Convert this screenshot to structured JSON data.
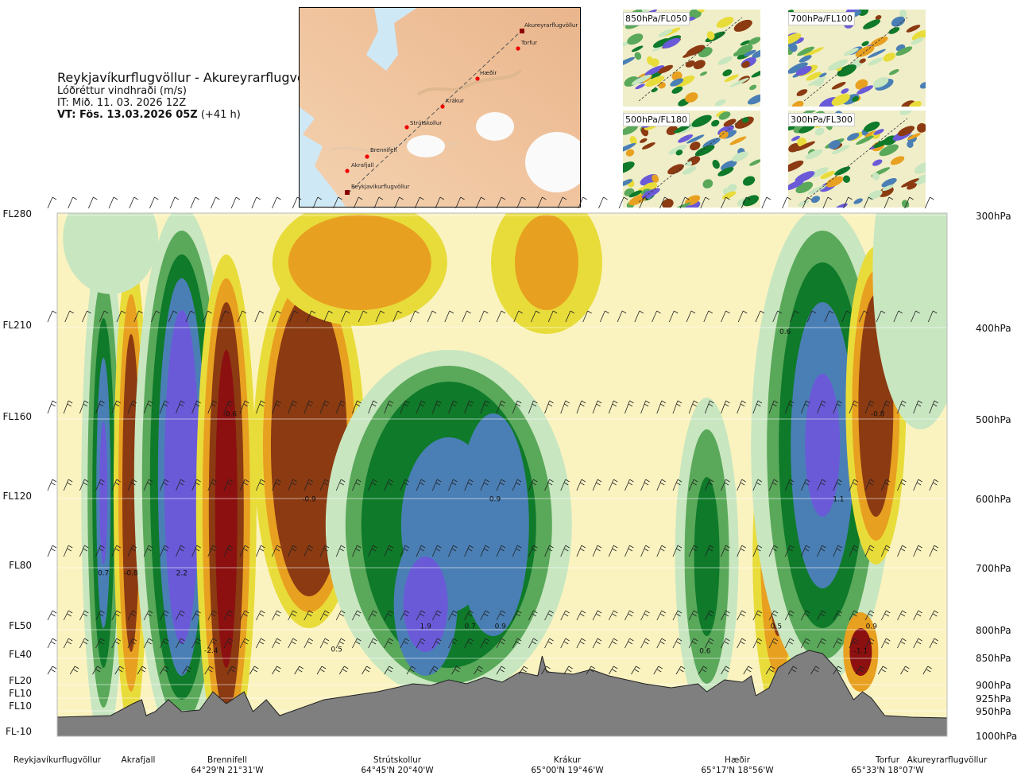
{
  "title": {
    "route": "Reykjavíkurflugvöllur - Akureyrarflugvöllur",
    "variable": "Lóðréttur vindhraði (m/s)",
    "init_time": "IT: Mið. 11. 03. 2026 12Z",
    "valid_time": "VT: Fös. 13.03.2026 05Z",
    "lead": "(+41 h)"
  },
  "map": {
    "waypoints": [
      "Akureyrarflugvöllur",
      "Torfur",
      "Hæðir",
      "Krákur",
      "Strútskollur",
      "Brennifell",
      "Akrafjall",
      "Reykjavíkurflugvöllur"
    ]
  },
  "thumbnails": [
    {
      "label": "850hPa/FL050"
    },
    {
      "label": "700hPa/FL100"
    },
    {
      "label": "500hPa/FL180"
    },
    {
      "label": "300hPa/FL300"
    }
  ],
  "chart_data": {
    "type": "heatmap",
    "title": "Lóðréttur vindhraði (m/s)",
    "x_axis_stations": [
      {
        "name": "Reykjavíkurflugvöllur",
        "coord": ""
      },
      {
        "name": "Akrafjall",
        "coord": ""
      },
      {
        "name": "Brennifell",
        "coord": "64°29'N 21°31'W"
      },
      {
        "name": "Strútskollur",
        "coord": "64°45'N 20°40'W"
      },
      {
        "name": "Krákur",
        "coord": "65°00'N 19°46'W"
      },
      {
        "name": "Hæðir",
        "coord": "65°17'N 18°56'W"
      },
      {
        "name": "Torfur",
        "coord": "65°33'N 18°07'W"
      },
      {
        "name": "Akureyrarflugvöllur",
        "coord": ""
      }
    ],
    "y_axis_left": [
      "FL280",
      "FL210",
      "FL160",
      "FL120",
      "FL80",
      "FL50",
      "FL40",
      "FL20",
      "FL10",
      "FL10",
      "FL-10"
    ],
    "y_axis_right": [
      "300hPa",
      "400hPa",
      "500hPa",
      "600hPa",
      "700hPa",
      "800hPa",
      "850hPa",
      "900hPa",
      "925hPa",
      "950hPa",
      "1000hPa"
    ],
    "pressure_levels_hpa": [
      300,
      400,
      500,
      600,
      700,
      800,
      850,
      900,
      925,
      950,
      1000
    ],
    "value_labels": [
      {
        "text": "0.7",
        "distance": 0.052,
        "pressure": 712
      },
      {
        "text": "-0.8",
        "distance": 0.083,
        "pressure": 712
      },
      {
        "text": "2.2",
        "distance": 0.14,
        "pressure": 712
      },
      {
        "text": "-2.4",
        "distance": 0.173,
        "pressure": 840
      },
      {
        "text": "-0.6",
        "distance": 0.194,
        "pressure": 497
      },
      {
        "text": "-0.9",
        "distance": 0.283,
        "pressure": 604
      },
      {
        "text": "0.5",
        "distance": 0.314,
        "pressure": 838
      },
      {
        "text": "1.9",
        "distance": 0.414,
        "pressure": 798
      },
      {
        "text": "0.7",
        "distance": 0.464,
        "pressure": 798
      },
      {
        "text": "0.9",
        "distance": 0.498,
        "pressure": 798
      },
      {
        "text": "0.9",
        "distance": 0.492,
        "pressure": 604
      },
      {
        "text": "0.6",
        "distance": 0.728,
        "pressure": 841
      },
      {
        "text": "0.5",
        "distance": 0.808,
        "pressure": 798
      },
      {
        "text": "0.6",
        "distance": 0.818,
        "pressure": 407
      },
      {
        "text": "1.1",
        "distance": 0.878,
        "pressure": 604
      },
      {
        "text": "-1.1",
        "distance": 0.903,
        "pressure": 841
      },
      {
        "text": "0.9",
        "distance": 0.915,
        "pressure": 798
      },
      {
        "text": "-0.8",
        "distance": 0.922,
        "pressure": 497
      }
    ],
    "colors": {
      "strong_down": "#8c1010",
      "down": "#8b3a12",
      "weak_down": "#e8a020",
      "slight_down": "#e8dc3a",
      "neutral": "#faf3c0",
      "slight_up": "#c8e6c0",
      "weak_up": "#5aa85a",
      "up": "#0e7a2a",
      "strong_up": "#4a7fb5",
      "very_strong_up": "#6a5ad8",
      "terrain": "#7f7f7f"
    }
  }
}
